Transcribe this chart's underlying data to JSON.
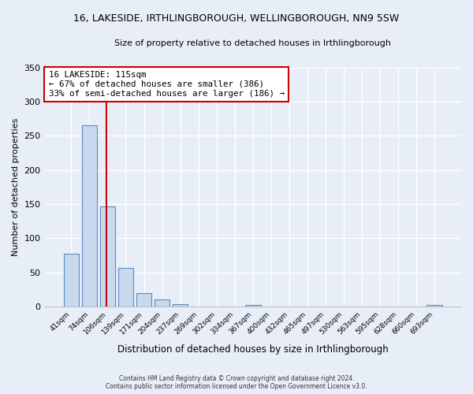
{
  "title": "16, LAKESIDE, IRTHLINGBOROUGH, WELLINGBOROUGH, NN9 5SW",
  "subtitle": "Size of property relative to detached houses in Irthlingborough",
  "xlabel": "Distribution of detached houses by size in Irthlingborough",
  "ylabel": "Number of detached properties",
  "bar_labels": [
    "41sqm",
    "74sqm",
    "106sqm",
    "139sqm",
    "171sqm",
    "204sqm",
    "237sqm",
    "269sqm",
    "302sqm",
    "334sqm",
    "367sqm",
    "400sqm",
    "432sqm",
    "465sqm",
    "497sqm",
    "530sqm",
    "563sqm",
    "595sqm",
    "628sqm",
    "660sqm",
    "693sqm"
  ],
  "bar_values": [
    77,
    265,
    147,
    57,
    20,
    10,
    3,
    0,
    0,
    0,
    2,
    0,
    0,
    0,
    0,
    0,
    0,
    0,
    0,
    0,
    2
  ],
  "bar_color": "#c8d9ee",
  "bar_edge_color": "#5b8ac5",
  "ylim": [
    0,
    350
  ],
  "yticks": [
    0,
    50,
    100,
    150,
    200,
    250,
    300,
    350
  ],
  "vline_color": "#cc0000",
  "annotation_title": "16 LAKESIDE: 115sqm",
  "annotation_line1": "← 67% of detached houses are smaller (386)",
  "annotation_line2": "33% of semi-detached houses are larger (186) →",
  "annotation_box_edgecolor": "#cc0000",
  "footer_line1": "Contains HM Land Registry data © Crown copyright and database right 2024.",
  "footer_line2": "Contains public sector information licensed under the Open Government Licence v3.0.",
  "background_color": "#e8eef8",
  "plot_background": "#e8eef8",
  "grid_color": "#ffffff",
  "title_fontsize": 9,
  "subtitle_fontsize": 8
}
